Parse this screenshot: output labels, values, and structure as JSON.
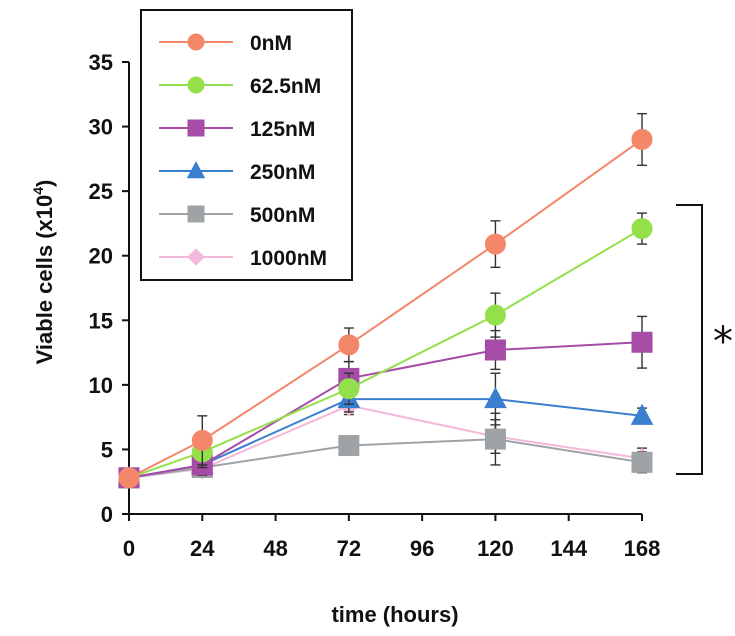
{
  "chart_data": {
    "type": "line",
    "xlabel": "time (hours)",
    "ylabel_main": "Viable  cells (x10",
    "ylabel_exp": "4",
    "ylabel_close": ")",
    "xlim": [
      0,
      168
    ],
    "ylim": [
      0,
      35
    ],
    "xticks": [
      0,
      24,
      48,
      72,
      96,
      120,
      144,
      168
    ],
    "yticks": [
      0,
      5,
      10,
      15,
      20,
      25,
      30,
      35
    ],
    "grid": false,
    "legend_position": "top-left",
    "significance_marker": "*",
    "series": [
      {
        "name": "0nM",
        "color": "#f4876a",
        "marker": "circle",
        "x": [
          0,
          24,
          72,
          120,
          168
        ],
        "y": [
          2.8,
          5.7,
          13.1,
          20.9,
          29.0
        ],
        "err": [
          0.3,
          1.9,
          1.3,
          1.8,
          2.0
        ]
      },
      {
        "name": "62.5nM",
        "color": "#94e04a",
        "marker": "circle",
        "x": [
          0,
          24,
          72,
          120,
          168
        ],
        "y": [
          2.8,
          4.8,
          9.7,
          15.4,
          22.1
        ],
        "err": [
          0.3,
          1.2,
          1.2,
          1.7,
          1.2
        ]
      },
      {
        "name": "125nM",
        "color": "#a64ca6",
        "marker": "square",
        "x": [
          0,
          24,
          72,
          120,
          168
        ],
        "y": [
          2.8,
          3.8,
          10.5,
          12.7,
          13.3
        ],
        "err": [
          0.3,
          0.8,
          1.3,
          1.5,
          2.0
        ]
      },
      {
        "name": "250nM",
        "color": "#3a7fcf",
        "marker": "triangle",
        "x": [
          0,
          24,
          72,
          120,
          168
        ],
        "y": [
          2.8,
          3.8,
          8.9,
          8.9,
          7.6
        ],
        "err": [
          0.3,
          0.8,
          1.0,
          2.0,
          0.6
        ]
      },
      {
        "name": "500nM",
        "color": "#9fa3a6",
        "marker": "square",
        "x": [
          0,
          24,
          72,
          120,
          168
        ],
        "y": [
          2.8,
          3.6,
          5.3,
          5.8,
          4.0
        ],
        "err": [
          0.3,
          0.6,
          0.6,
          2.0,
          0.8
        ]
      },
      {
        "name": "1000nM",
        "color": "#f4b8d8",
        "marker": "diamond",
        "x": [
          0,
          24,
          72,
          120,
          168
        ],
        "y": [
          2.8,
          3.5,
          8.4,
          6.0,
          4.3
        ],
        "err": [
          0.3,
          0.6,
          0.7,
          1.3,
          0.8
        ]
      }
    ]
  }
}
